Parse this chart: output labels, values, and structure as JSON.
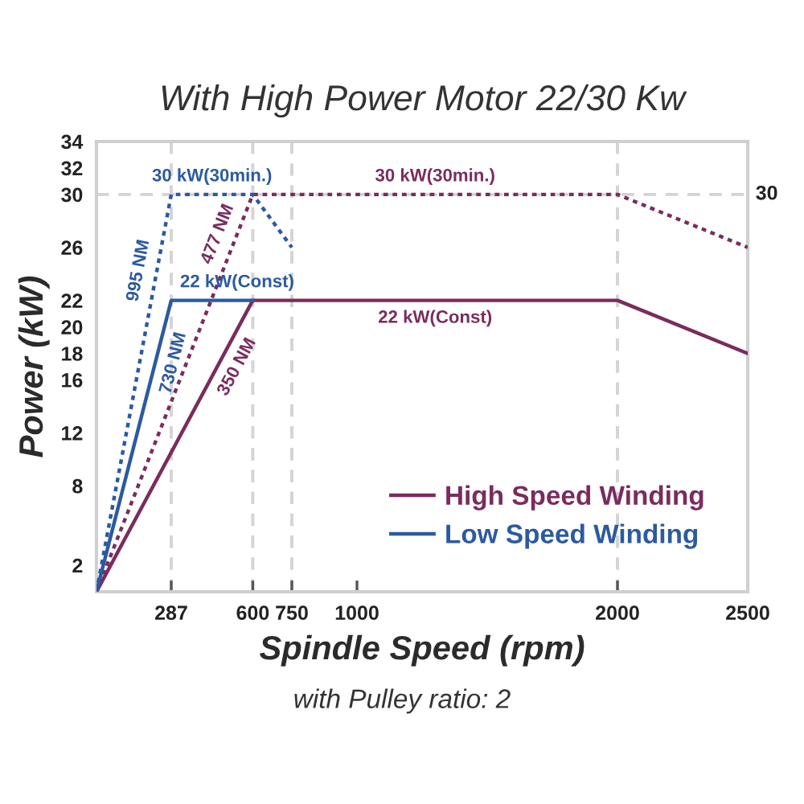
{
  "chart_data": {
    "type": "line",
    "title": "With High Power Motor 22/30 Kw",
    "xlabel": "Spindle Speed (rpm)",
    "ylabel": "Power (kW)",
    "xlim": [
      0,
      2500
    ],
    "xticks": [
      287,
      600,
      750,
      1000,
      2000,
      2500
    ],
    "ylim": [
      0,
      34
    ],
    "yticks": [
      2,
      8,
      12,
      16,
      18,
      20,
      22,
      26,
      30,
      32,
      34
    ],
    "series": [
      {
        "name": "High Speed Winding",
        "color": "#7a2c5e",
        "line_style": "solid",
        "x": [
          0,
          600,
          2000,
          2500
        ],
        "values": [
          0,
          22,
          22,
          18
        ]
      },
      {
        "color": "#7a2c5e",
        "line_style": "dotted",
        "x": [
          0,
          600,
          2000,
          2500
        ],
        "values": [
          0,
          30,
          30,
          26
        ]
      },
      {
        "name": "Low Speed Winding",
        "color": "#2c5aa0",
        "line_style": "solid",
        "x": [
          0,
          287,
          600
        ],
        "values": [
          0,
          22,
          22
        ]
      },
      {
        "color": "#2c5aa0",
        "line_style": "dotted",
        "x": [
          0,
          287,
          600,
          750
        ],
        "values": [
          0,
          30,
          30,
          26
        ]
      }
    ],
    "ref_lines": [
      {
        "axis": "x",
        "value": 287,
        "color": "#d4d4d4",
        "line_style": "dashed"
      },
      {
        "axis": "x",
        "value": 600,
        "color": "#d4d4d4",
        "line_style": "dashed"
      },
      {
        "axis": "x",
        "value": 750,
        "color": "#d4d4d4",
        "line_style": "dashed"
      },
      {
        "axis": "x",
        "value": 2000,
        "color": "#d4d4d4",
        "line_style": "dashed"
      },
      {
        "axis": "y",
        "value": 30,
        "color": "#d4d4d4",
        "line_style": "dashed",
        "label": "30"
      }
    ],
    "annotations": [
      {
        "text": "995 NM",
        "x": 229.6,
        "y": 24
      },
      {
        "text": "730 NM",
        "x": 229.6,
        "y": 17.6
      },
      {
        "text": "477 NM",
        "x": 530,
        "y": 26.5
      },
      {
        "text": "350 NM",
        "x": 480,
        "y": 17.6
      },
      {
        "text": "30 kW(30min.)",
        "x": 443.5,
        "y": 30
      },
      {
        "text": "22 kW(Const)",
        "x": 540,
        "y": 22
      },
      {
        "text": "30 kW(30min.)",
        "x": 1300,
        "y": 30
      },
      {
        "text": "22 kW(Const)",
        "x": 1300,
        "y": 22
      },
      "with Pulley ratio: 2"
    ],
    "legend": "bottom right",
    "grid": false
  }
}
